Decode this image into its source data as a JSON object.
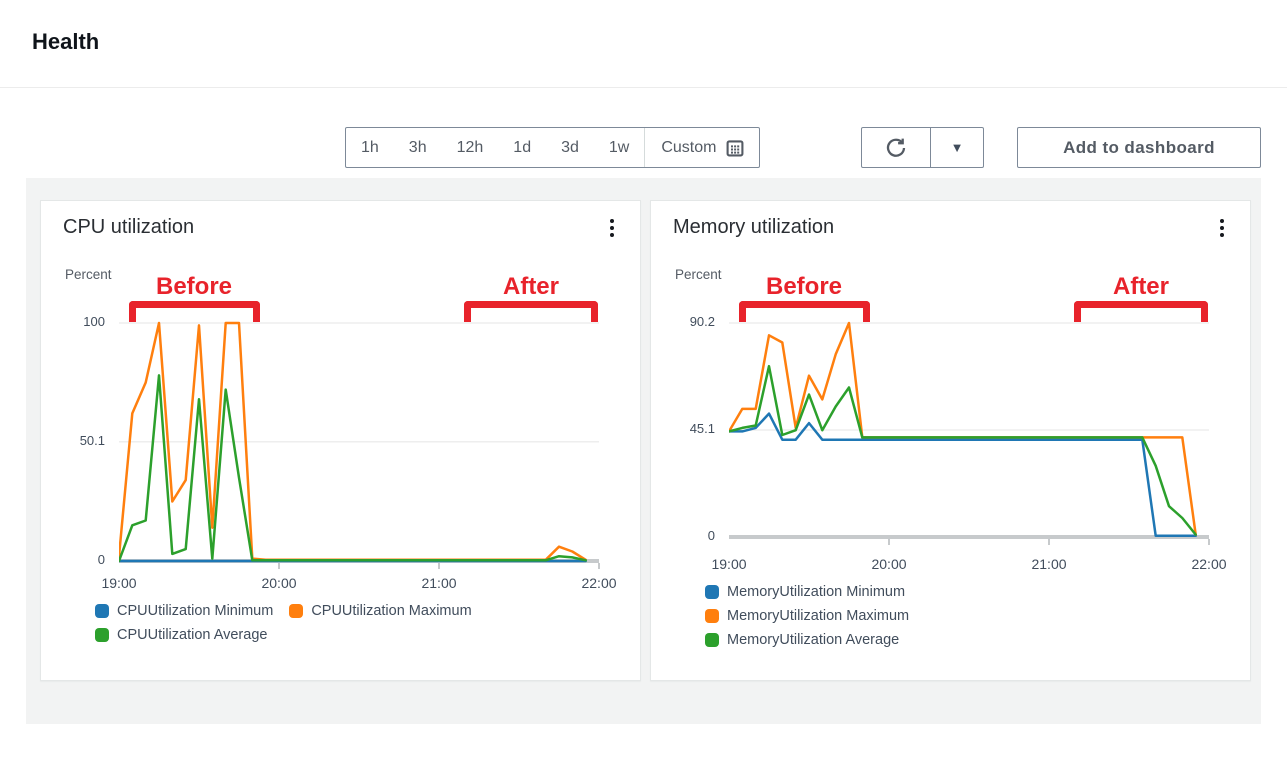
{
  "header": {
    "title": "Health"
  },
  "toolbar": {
    "time_ranges": [
      "1h",
      "3h",
      "12h",
      "1d",
      "3d",
      "1w"
    ],
    "custom_label": "Custom",
    "add_to_dashboard_label": "Add to dashboard"
  },
  "annotations": {
    "before": "Before",
    "after": "After",
    "color": "#e8232b"
  },
  "chart_data": [
    {
      "type": "line",
      "title": "CPU utilization",
      "ylabel": "Percent",
      "ylim": [
        0,
        100
      ],
      "yticks": [
        0,
        50.1,
        100
      ],
      "xticks": [
        "19:00",
        "20:00",
        "21:00",
        "22:00"
      ],
      "x_start": "19:00",
      "x_step_minutes": 5,
      "legend_layout": "wrap",
      "grid": true,
      "series": [
        {
          "name": "CPUUtilization Minimum",
          "color": "#1f77b4",
          "values": [
            0,
            0,
            0,
            0,
            0,
            0,
            0,
            0,
            0,
            0,
            0,
            0,
            0,
            0,
            0,
            0,
            0,
            0,
            0,
            0,
            0,
            0,
            0,
            0,
            0,
            0,
            0,
            0,
            0,
            0,
            0,
            0,
            0,
            0,
            0,
            0
          ]
        },
        {
          "name": "CPUUtilization Maximum",
          "color": "#ff7f0e",
          "values": [
            2,
            62,
            75,
            100,
            25,
            34,
            99,
            14,
            100,
            100,
            1,
            0.5,
            0.5,
            0.5,
            0.5,
            0.5,
            0.5,
            0.5,
            0.5,
            0.5,
            0.5,
            0.5,
            0.5,
            0.5,
            0.5,
            0.5,
            0.5,
            0.5,
            0.5,
            0.5,
            0.5,
            0.5,
            0.5,
            6,
            4,
            0.5
          ]
        },
        {
          "name": "CPUUtilization Average",
          "color": "#2ca02c",
          "values": [
            0,
            15,
            17,
            78,
            3,
            5,
            68,
            1,
            72,
            35,
            0.3,
            0.3,
            0.3,
            0.3,
            0.3,
            0.3,
            0.3,
            0.3,
            0.3,
            0.3,
            0.3,
            0.3,
            0.3,
            0.3,
            0.3,
            0.3,
            0.3,
            0.3,
            0.3,
            0.3,
            0.3,
            0.3,
            0.3,
            2,
            1.5,
            0.3
          ]
        }
      ]
    },
    {
      "type": "line",
      "title": "Memory utilization",
      "ylabel": "Percent",
      "ylim": [
        0,
        90.2
      ],
      "yticks": [
        0,
        45.1,
        90.2
      ],
      "xticks": [
        "19:00",
        "20:00",
        "21:00",
        "22:00"
      ],
      "x_start": "19:00",
      "x_step_minutes": 5,
      "legend_layout": "column",
      "grid": true,
      "series": [
        {
          "name": "MemoryUtilization Minimum",
          "color": "#1f77b4",
          "values": [
            44.5,
            44.5,
            46,
            52,
            41,
            41,
            48,
            41,
            41,
            41,
            41,
            41,
            41,
            41,
            41,
            41,
            41,
            41,
            41,
            41,
            41,
            41,
            41,
            41,
            41,
            41,
            41,
            41,
            41,
            41,
            41,
            41,
            0.5,
            0.5,
            0.5,
            0.5
          ]
        },
        {
          "name": "MemoryUtilization Maximum",
          "color": "#ff7f0e",
          "values": [
            44.5,
            54,
            54,
            85,
            82,
            46,
            68,
            58,
            77,
            90.2,
            42,
            42,
            42,
            42,
            42,
            42,
            42,
            42,
            42,
            42,
            42,
            42,
            42,
            42,
            42,
            42,
            42,
            42,
            42,
            42,
            42,
            42,
            42,
            42,
            42,
            1
          ]
        },
        {
          "name": "MemoryUtilization Average",
          "color": "#2ca02c",
          "values": [
            44.5,
            46,
            47,
            72,
            43,
            45,
            60,
            45,
            55,
            63,
            42,
            42,
            42,
            42,
            42,
            42,
            42,
            42,
            42,
            42,
            42,
            42,
            42,
            42,
            42,
            42,
            42,
            42,
            42,
            42,
            42,
            42,
            30,
            13,
            8,
            1
          ]
        }
      ]
    }
  ]
}
